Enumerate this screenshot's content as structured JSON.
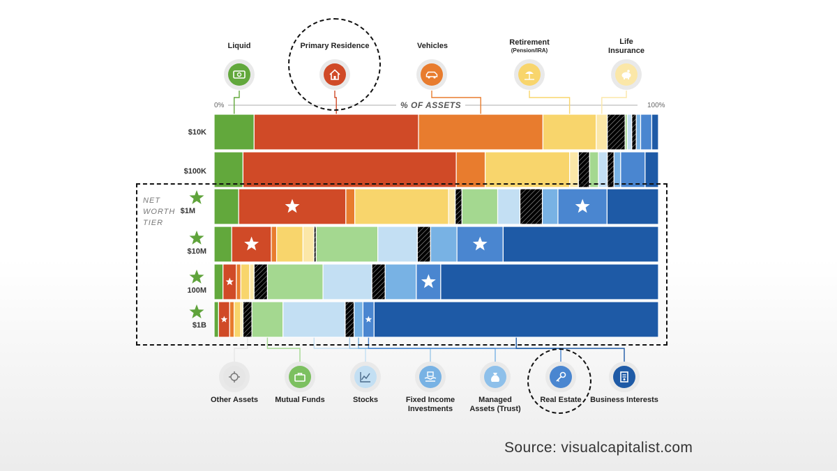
{
  "colors": {
    "liquid": "#62a83c",
    "primary_residence": "#d04a27",
    "vehicles": "#e87c2e",
    "retirement": "#f8d56c",
    "life_insurance": "#fbe7a8",
    "other_assets": "#e6e6e6",
    "mutual_funds": "#a4d890",
    "stocks": "#c3dff3",
    "fixed_income": "#9ec8e8",
    "managed_assets": "#78b2e4",
    "real_estate": "#4a86d0",
    "business_interests": "#1e5aa6"
  },
  "top_categories": [
    {
      "key": "liquid",
      "name": "Liquid",
      "sub": "",
      "icon": "cash-icon"
    },
    {
      "key": "primary_residence",
      "name": "Primary Residence",
      "sub": "",
      "icon": "house-icon"
    },
    {
      "key": "vehicles",
      "name": "Vehicles",
      "sub": "",
      "icon": "car-icon"
    },
    {
      "key": "retirement",
      "name": "Retirement",
      "sub": "(Pension/IRA)",
      "icon": "beach-icon"
    },
    {
      "key": "life_insurance",
      "name": "Life",
      "sub": "Insurance",
      "icon": "piggy-bank-icon"
    }
  ],
  "bottom_categories": [
    {
      "key": "other_assets",
      "name": "Other Assets",
      "sub": "",
      "icon": "gear-dollar-icon"
    },
    {
      "key": "mutual_funds",
      "name": "Mutual Funds",
      "sub": "",
      "icon": "briefcase-icon"
    },
    {
      "key": "stocks",
      "name": "Stocks",
      "sub": "",
      "icon": "stock-chart-icon"
    },
    {
      "key": "fixed_income",
      "name": "Fixed Income",
      "sub": "Investments",
      "icon": "hands-money-icon"
    },
    {
      "key": "managed_assets",
      "name": "Managed",
      "sub": "Assets (Trust)",
      "icon": "money-bag-icon"
    },
    {
      "key": "real_estate",
      "name": "Real Estate",
      "sub": "",
      "icon": "key-icon"
    },
    {
      "key": "business_interests",
      "name": "Business Interests",
      "sub": "",
      "icon": "document-icon"
    }
  ],
  "axis": {
    "left": "0%",
    "right": "100%",
    "title": "% OF ASSETS"
  },
  "side_title": [
    "NET",
    "WORTH",
    "TIER"
  ],
  "source": "Source: visualcapitalist.com",
  "chart_data": {
    "type": "bar",
    "orientation": "horizontal",
    "stacked": true,
    "normalized": true,
    "categories": [
      "$10K",
      "$100K",
      "$1M",
      "$10M",
      "100M",
      "$1B"
    ],
    "xlabel": "% OF ASSETS",
    "xlim": [
      0,
      100
    ],
    "series": [
      {
        "name": "Liquid",
        "key": "liquid",
        "values": [
          9,
          6.5,
          5.5,
          4,
          2,
          1
        ]
      },
      {
        "name": "Primary Residence",
        "key": "primary_residence",
        "values": [
          37,
          48,
          24,
          9,
          3,
          2.5
        ]
      },
      {
        "name": "Vehicles",
        "key": "vehicles",
        "values": [
          28,
          6.5,
          2,
          1.2,
          1,
          1
        ]
      },
      {
        "name": "Retirement (Pension/IRA)",
        "key": "retirement",
        "values": [
          12,
          19,
          21,
          6,
          2,
          1.5
        ]
      },
      {
        "name": "Life Insurance",
        "key": "life_insurance",
        "values": [
          2.5,
          2,
          1.5,
          2.5,
          1,
          0.5
        ]
      },
      {
        "name": "Other Assets",
        "key": "other_assets",
        "values": [
          4,
          2.5,
          1.5,
          0.5,
          3,
          2
        ]
      },
      {
        "name": "Mutual Funds",
        "key": "mutual_funds",
        "values": [
          0.5,
          2,
          8,
          14,
          12.5,
          7
        ]
      },
      {
        "name": "Stocks",
        "key": "stocks",
        "values": [
          1,
          2,
          5,
          9,
          11,
          14
        ]
      },
      {
        "name": "Fixed Income Investments",
        "key": "fixed_income",
        "values": [
          1,
          1.5,
          5,
          3,
          3,
          2
        ]
      },
      {
        "name": "Managed Assets (Trust)",
        "key": "managed_assets",
        "values": [
          1,
          1.5,
          3.5,
          6,
          7,
          2
        ]
      },
      {
        "name": "Real Estate",
        "key": "real_estate",
        "values": [
          2.5,
          5.5,
          11,
          10.5,
          5.5,
          2.5
        ]
      },
      {
        "name": "Business Interests",
        "key": "business_interests",
        "values": [
          1.5,
          3,
          11.5,
          35.3,
          49,
          64
        ]
      }
    ],
    "highlighted": {
      "series": [
        "Primary Residence",
        "Real Estate"
      ],
      "tiers": [
        "$1M",
        "$10M",
        "100M",
        "$1B"
      ]
    }
  }
}
